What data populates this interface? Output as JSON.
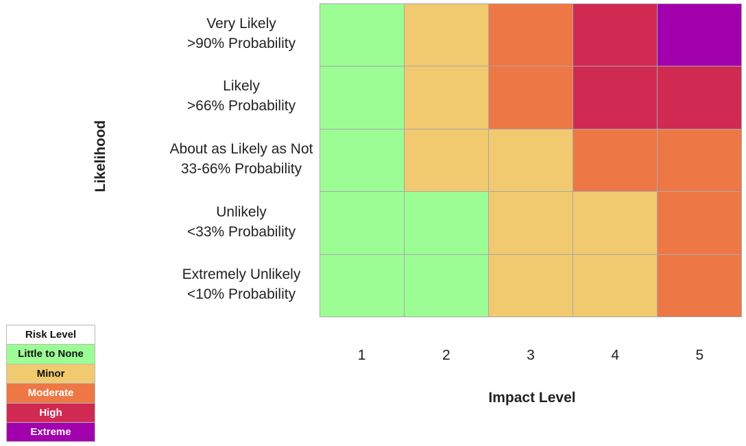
{
  "chart_data": {
    "type": "heatmap",
    "xlabel": "Impact Level",
    "ylabel": "Likelihood",
    "x_categories": [
      "1",
      "2",
      "3",
      "4",
      "5"
    ],
    "y_categories": [
      {
        "label": "Very Likely",
        "sub": ">90% Probability"
      },
      {
        "label": "Likely",
        "sub": ">66% Probability"
      },
      {
        "label": "About as Likely as Not",
        "sub": "33-66% Probability"
      },
      {
        "label": "Unlikely",
        "sub": "<33% Probability"
      },
      {
        "label": "Extremely Unlikely",
        "sub": "<10% Probability"
      }
    ],
    "levels": [
      {
        "name": "Little to None",
        "color": "#9dfd95",
        "text_color": "#111111"
      },
      {
        "name": "Minor",
        "color": "#f1c96f",
        "text_color": "#111111"
      },
      {
        "name": "Moderate",
        "color": "#ed7845",
        "text_color": "#ffffff"
      },
      {
        "name": "High",
        "color": "#d02a53",
        "text_color": "#ffffff"
      },
      {
        "name": "Extreme",
        "color": "#a200ad",
        "text_color": "#ffffff"
      }
    ],
    "cells": [
      [
        0,
        1,
        2,
        3,
        4
      ],
      [
        0,
        1,
        2,
        3,
        3
      ],
      [
        0,
        1,
        1,
        2,
        2
      ],
      [
        0,
        0,
        1,
        1,
        2
      ],
      [
        0,
        0,
        1,
        1,
        2
      ]
    ],
    "legend": {
      "title": "Risk Level",
      "placement": "bottom-left"
    },
    "grid": true
  }
}
